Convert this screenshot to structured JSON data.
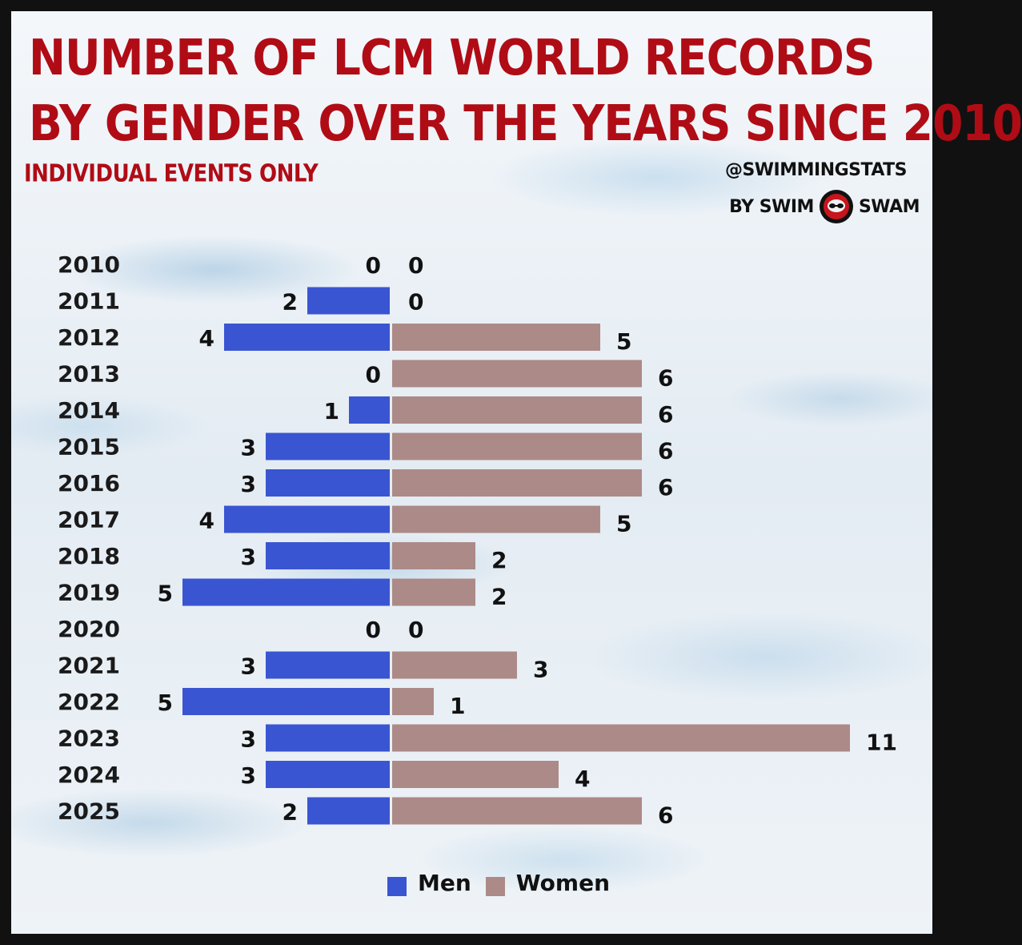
{
  "title_line1": "NUMBER OF LCM WORLD RECORDS",
  "title_line2": "BY GENDER OVER THE YEARS SINCE 2010",
  "subtitle": "INDIVIDUAL EVENTS ONLY",
  "credit": {
    "handle": "@SWIMMINGSTATS",
    "by_left": "BY SWIM",
    "by_right": "SWAM"
  },
  "colors": {
    "men": "#3a55d2",
    "women": "#ac8a88",
    "title": "#b00c16"
  },
  "chart_data": {
    "type": "bar",
    "orientation": "horizontal-diverging",
    "categories": [
      "2010",
      "2011",
      "2012",
      "2013",
      "2014",
      "2015",
      "2016",
      "2017",
      "2018",
      "2019",
      "2020",
      "2021",
      "2022",
      "2023",
      "2024",
      "2025"
    ],
    "series": [
      {
        "name": "Men",
        "values": [
          0,
          2,
          4,
          0,
          1,
          3,
          3,
          4,
          3,
          5,
          0,
          3,
          5,
          3,
          3,
          2
        ]
      },
      {
        "name": "Women",
        "values": [
          0,
          0,
          5,
          6,
          6,
          6,
          6,
          5,
          2,
          2,
          0,
          3,
          1,
          11,
          4,
          6
        ]
      }
    ],
    "legend_position": "bottom-center",
    "grid": false
  }
}
